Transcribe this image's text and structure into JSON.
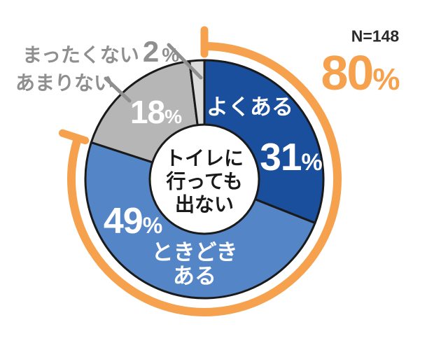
{
  "chart_data": {
    "type": "pie",
    "style": "donut",
    "sample_label": "N=148",
    "unit": "%",
    "center_label": "トイレに行っても出ない",
    "center_label_lines": [
      "トイレに",
      "行っても",
      "出ない"
    ],
    "segments": [
      {
        "label": "よくある",
        "value": 31,
        "color": "#1a4f9e",
        "label_position": "inside"
      },
      {
        "label": "ときどきある",
        "label_lines": [
          "ときどき",
          "ある"
        ],
        "value": 49,
        "color": "#5486c7",
        "label_position": "inside"
      },
      {
        "label": "あまりない",
        "value": 18,
        "color": "#b6b6b6",
        "label_position": "outside"
      },
      {
        "label": "まったくない",
        "value": 2,
        "color": "#dbdbdb",
        "label_position": "outside"
      }
    ],
    "highlight_arc": {
      "total": 80,
      "covers": [
        "よくある",
        "ときどきある"
      ],
      "color": "#f5a14d",
      "start_at_percent": 0
    },
    "colors": {
      "outline": "#1a1a1a",
      "hole": "#ffffff",
      "inside_text": "#ffffff",
      "outside_text": "#8f8f8f",
      "leader_line": "#8f8f8f",
      "sample_text": "#2b2b2b",
      "center_text": "#1a1a1a"
    }
  }
}
